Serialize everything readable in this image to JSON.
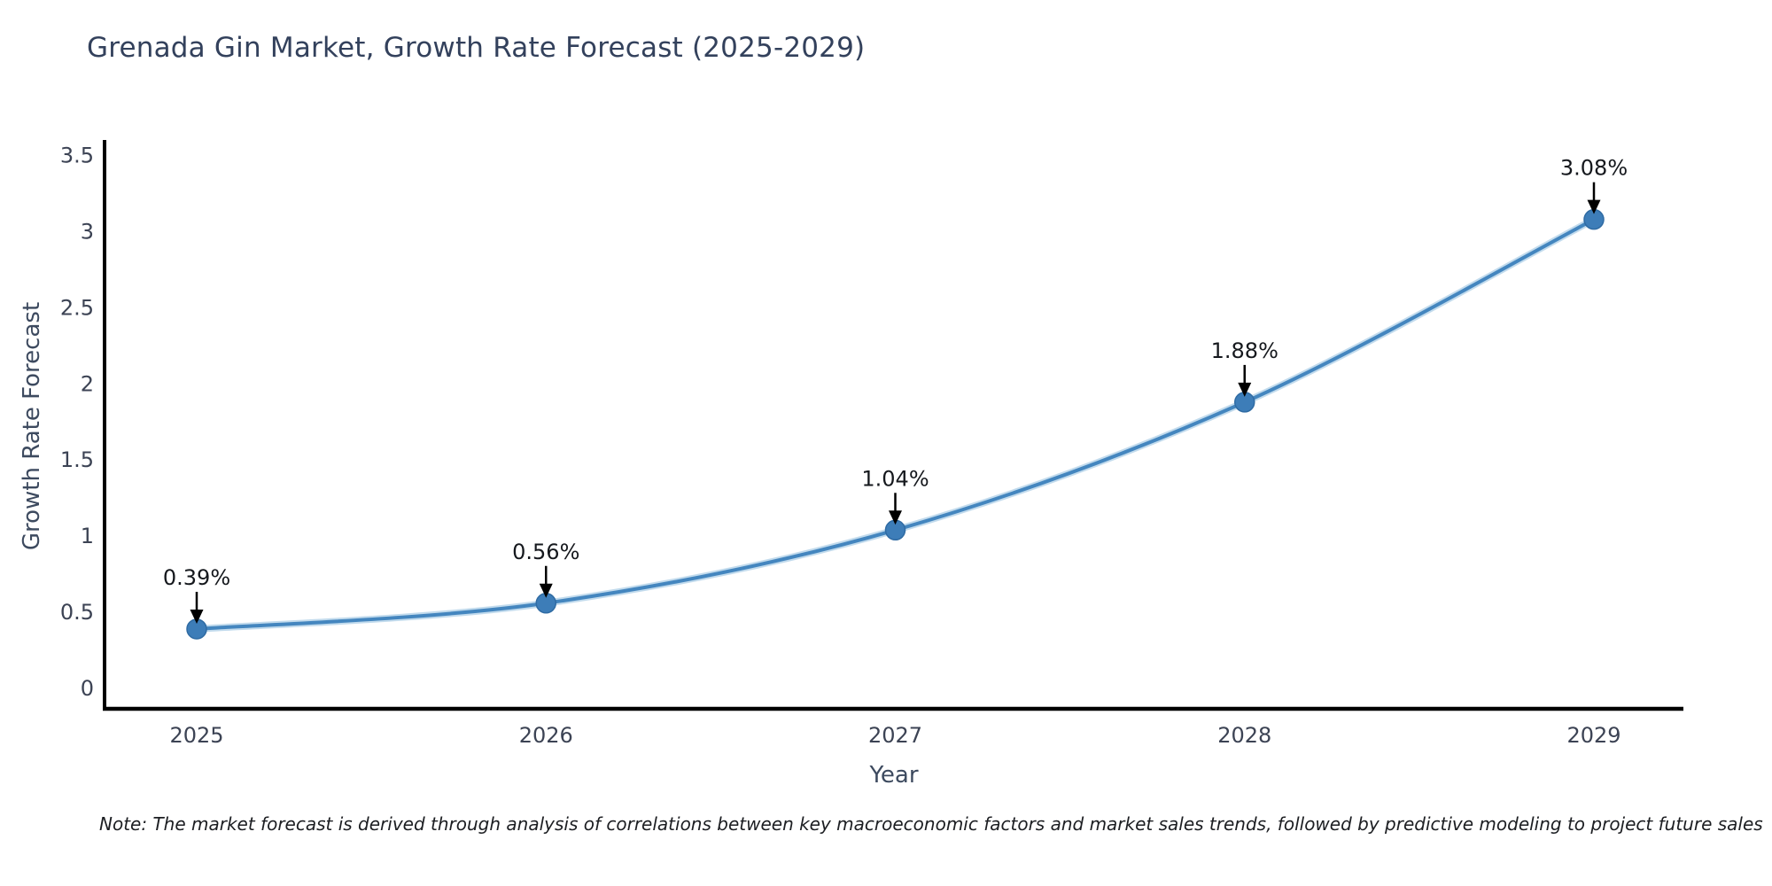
{
  "title": "Grenada Gin Market, Growth Rate Forecast (2025-2029)",
  "note": "Note: The market forecast is derived through analysis of correlations between key macroeconomic factors and market sales trends, followed by predictive modeling to project future sales",
  "chart_data": {
    "type": "line",
    "title": "Grenada Gin Market, Growth Rate Forecast (2025-2029)",
    "xlabel": "Year",
    "ylabel": "Growth Rate Forecast",
    "x": [
      2025,
      2026,
      2027,
      2028,
      2029
    ],
    "x_tick_labels": [
      "2025",
      "2026",
      "2027",
      "2028",
      "2029"
    ],
    "values": [
      0.39,
      0.56,
      1.04,
      1.88,
      3.08
    ],
    "point_labels": [
      "0.39%",
      "0.56%",
      "1.04%",
      "1.88%",
      "3.08%"
    ],
    "yticks": [
      0,
      0.5,
      1,
      1.5,
      2,
      2.5,
      3,
      3.5
    ],
    "ytick_labels": [
      "0",
      "0.5",
      "1",
      "1.5",
      "2",
      "2.5",
      "3",
      "3.5"
    ],
    "ylim": [
      -0.13,
      3.6
    ],
    "grid": false,
    "legend": null,
    "annotation_style": "down-arrow",
    "colors": {
      "line": "#4486bf",
      "line_halo": "#8fbede",
      "marker": "#3d7db8",
      "marker_edge": "#2f6ba3",
      "axis": "#000000",
      "tick_label": "#3c4354",
      "annotation": "#15181d",
      "title": "#33415c",
      "axis_label": "#3d4a5f"
    }
  }
}
